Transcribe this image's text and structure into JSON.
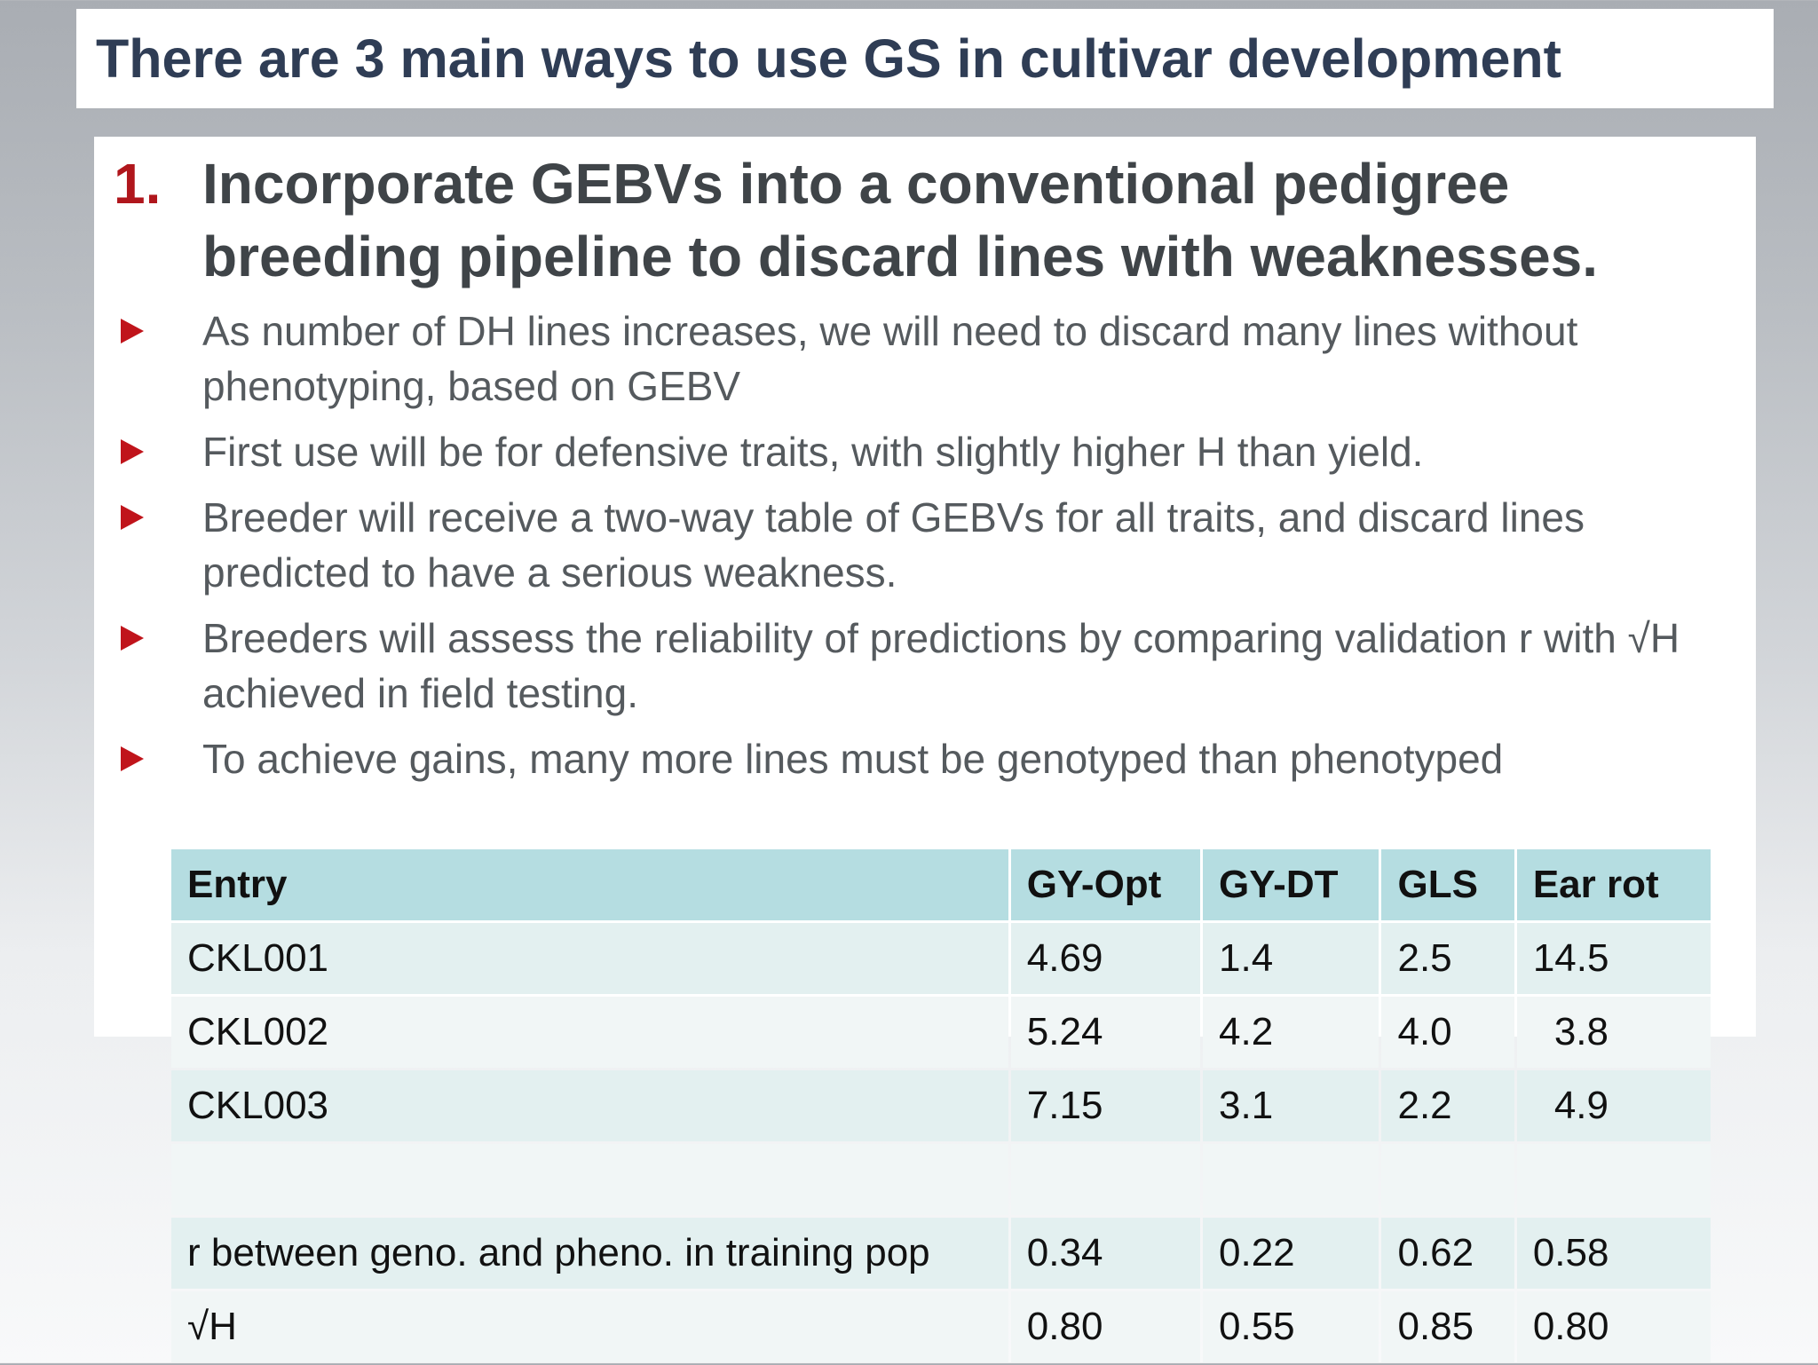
{
  "slide": {
    "title": "There are 3 main ways to use GS in cultivar development",
    "heading_number": "1.",
    "heading_text": "Incorporate GEBVs into a conventional pedigree breeding pipeline to discard lines with weaknesses.",
    "bullets": [
      "As number of DH lines increases, we will need to discard many lines without phenotyping, based on GEBV",
      "First use will be for defensive traits, with slightly higher H than yield.",
      "Breeder will receive a two-way table of GEBVs for all traits, and discard lines predicted to have a serious weakness.",
      "Breeders will assess the reliability of predictions by comparing validation r with √H achieved in field testing.",
      "To achieve gains, many more lines must be genotyped than phenotyped"
    ],
    "bullet_icon": "red-triangle-arrow-icon",
    "accent_color": "#b0161c"
  },
  "table": {
    "headers": [
      "Entry",
      "GY-Opt",
      "GY-DT",
      "GLS",
      "Ear rot"
    ],
    "rows": [
      [
        "CKL001",
        "4.69",
        "1.4",
        "2.5",
        "14.5"
      ],
      [
        "CKL002",
        "5.24",
        "4.2",
        "4.0",
        "3.8"
      ],
      [
        "CKL003",
        "7.15",
        "3.1",
        "2.2",
        "4.9"
      ],
      [
        "",
        "",
        "",
        "",
        ""
      ],
      [
        "r  between geno. and pheno. in training pop",
        "0.34",
        "0.22",
        "0.62",
        "0.58"
      ],
      [
        "√H",
        "0.80",
        "0.55",
        "0.85",
        "0.80"
      ]
    ],
    "header_color": "#b5dde1"
  }
}
